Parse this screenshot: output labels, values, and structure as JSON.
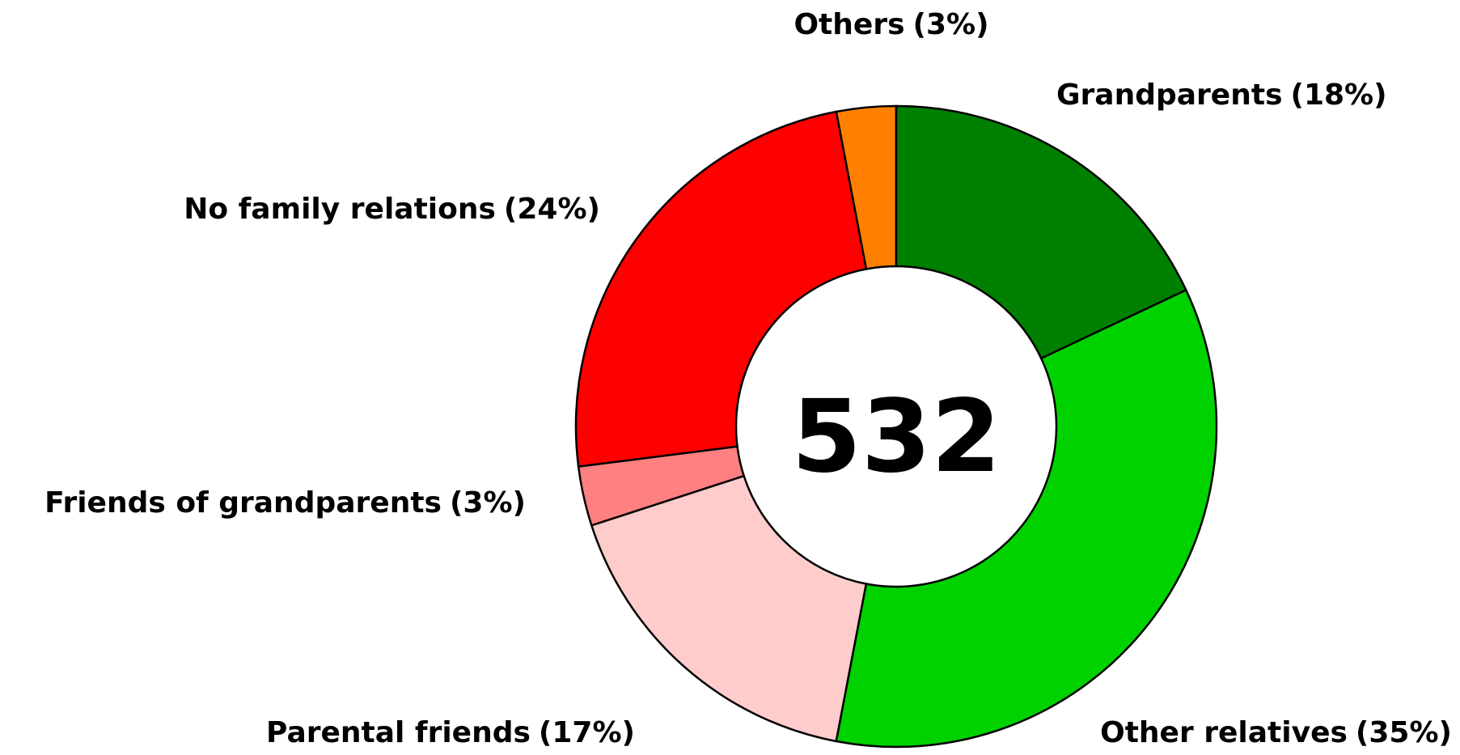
{
  "chart_data": {
    "type": "donut",
    "center_label": "532",
    "categories": [
      "Grandparents",
      "Other relatives",
      "Parental friends",
      "Friends of grandparents",
      "No family relations",
      "Others"
    ],
    "values": [
      18,
      35,
      17,
      3,
      24,
      3
    ],
    "value_labels": [
      "(18%)",
      "(35%)",
      "(17%)",
      "(3%)",
      "(24%)",
      "(3%)"
    ],
    "colors": [
      "#008000",
      "#00d200",
      "#ffcccc",
      "#ff8080",
      "#ff0000",
      "#ff8000"
    ]
  }
}
